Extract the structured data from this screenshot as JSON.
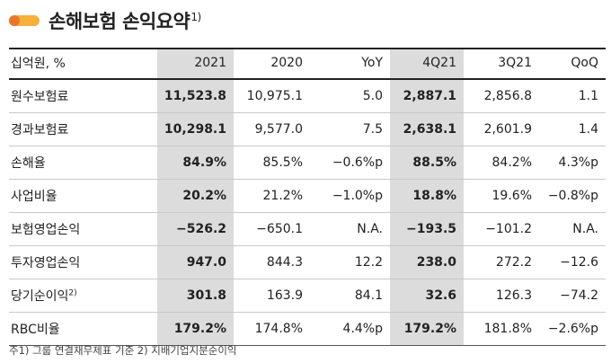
{
  "title": {
    "text": "손해보험 손익요약",
    "sup": "1)"
  },
  "headers": [
    "십억원, %",
    "2021",
    "2020",
    "YoY",
    "4Q21",
    "3Q21",
    "QoQ"
  ],
  "rows": [
    {
      "label": "원수보험료",
      "sup": "",
      "values": [
        "11,523.8",
        "10,975.1",
        "5.0",
        "2,887.1",
        "2,856.8",
        "1.1"
      ]
    },
    {
      "label": "경과보험료",
      "sup": "",
      "values": [
        "10,298.1",
        "9,577.0",
        "7.5",
        "2,638.1",
        "2,601.9",
        "1.4"
      ]
    },
    {
      "label": "손해율",
      "sup": "",
      "values": [
        "84.9%",
        "85.5%",
        "−0.6%p",
        "88.5%",
        "84.2%",
        "4.3%p"
      ]
    },
    {
      "label": "사업비율",
      "sup": "",
      "values": [
        "20.2%",
        "21.2%",
        "−1.0%p",
        "18.8%",
        "19.6%",
        "−0.8%p"
      ]
    },
    {
      "label": "보험영업손익",
      "sup": "",
      "values": [
        "−526.2",
        "−650.1",
        "N.A.",
        "−193.5",
        "−101.2",
        "N.A."
      ]
    },
    {
      "label": "투자영업손익",
      "sup": "",
      "values": [
        "947.0",
        "844.3",
        "12.2",
        "238.0",
        "272.2",
        "−12.6"
      ]
    },
    {
      "label": "당기순이익",
      "sup": "2)",
      "values": [
        "301.8",
        "163.9",
        "84.1",
        "32.6",
        "126.3",
        "−74.2"
      ]
    },
    {
      "label": "RBC비율",
      "sup": "",
      "values": [
        "179.2%",
        "174.8%",
        "4.4%p",
        "179.2%",
        "181.8%",
        "−2.6%p"
      ]
    }
  ],
  "footnote": "주1) 그룹 연결재무제표 기준   2) 지배기업지분순이익",
  "colors": {
    "accent_orange": "#e8772e",
    "accent_yellow": "#f6b03c",
    "highlight_gray": "#dcdcdc"
  }
}
